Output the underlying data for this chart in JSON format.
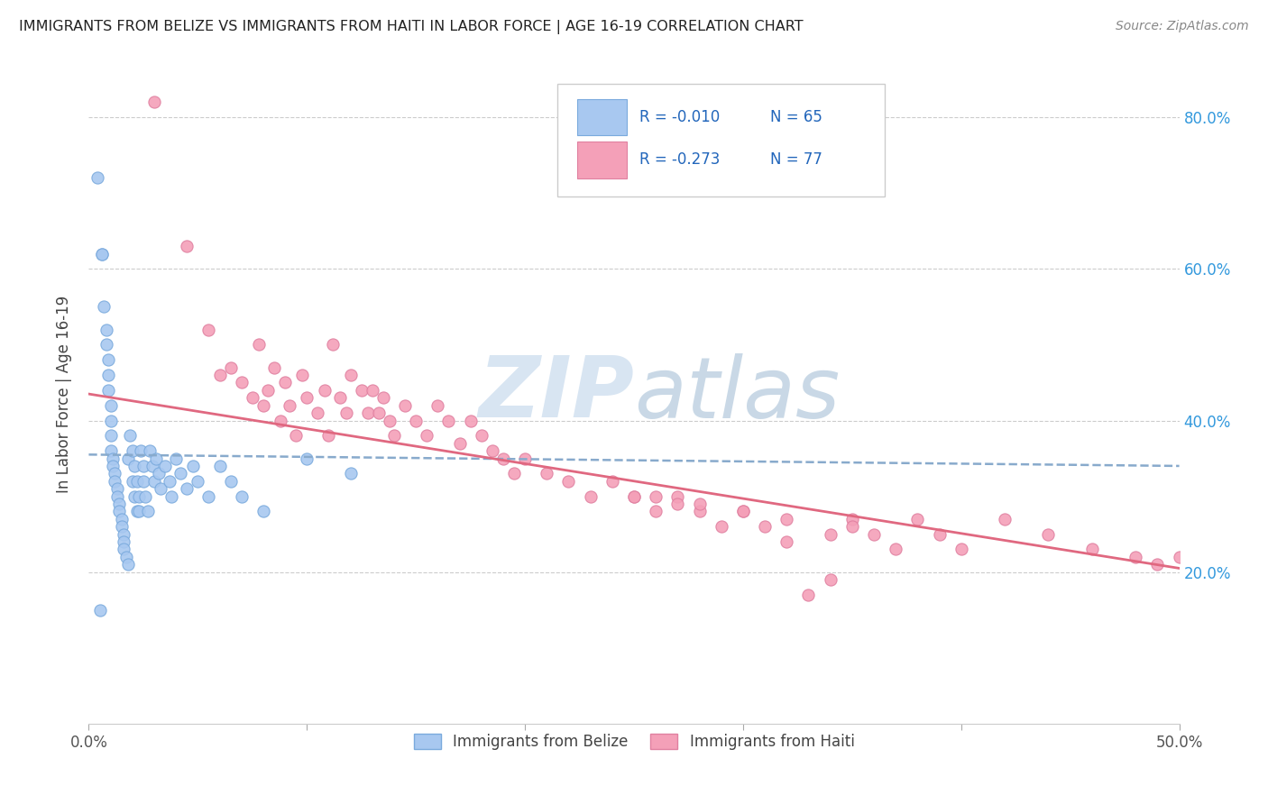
{
  "title": "IMMIGRANTS FROM BELIZE VS IMMIGRANTS FROM HAITI IN LABOR FORCE | AGE 16-19 CORRELATION CHART",
  "source": "Source: ZipAtlas.com",
  "ylabel": "In Labor Force | Age 16-19",
  "xmin": 0.0,
  "xmax": 0.5,
  "ymin": 0.0,
  "ymax": 0.87,
  "belize_color": "#a8c8f0",
  "haiti_color": "#f4a0b8",
  "belize_edge_color": "#7aaadd",
  "haiti_edge_color": "#e080a0",
  "belize_line_color": "#88aacc",
  "haiti_line_color": "#e06880",
  "legend_belize_label": "Immigrants from Belize",
  "legend_haiti_label": "Immigrants from Haiti",
  "R_belize": "-0.010",
  "N_belize": "65",
  "R_haiti": "-0.273",
  "N_haiti": "77",
  "belize_trend_intercept": 0.355,
  "belize_trend_slope": -0.03,
  "haiti_trend_intercept": 0.435,
  "haiti_trend_slope": -0.46,
  "belize_x": [
    0.004,
    0.006,
    0.006,
    0.007,
    0.008,
    0.008,
    0.009,
    0.009,
    0.009,
    0.01,
    0.01,
    0.01,
    0.01,
    0.011,
    0.011,
    0.012,
    0.012,
    0.013,
    0.013,
    0.014,
    0.014,
    0.015,
    0.015,
    0.016,
    0.016,
    0.016,
    0.017,
    0.018,
    0.018,
    0.019,
    0.02,
    0.02,
    0.021,
    0.021,
    0.022,
    0.022,
    0.023,
    0.023,
    0.024,
    0.025,
    0.025,
    0.026,
    0.027,
    0.028,
    0.029,
    0.03,
    0.031,
    0.032,
    0.033,
    0.035,
    0.037,
    0.038,
    0.04,
    0.042,
    0.045,
    0.048,
    0.05,
    0.055,
    0.06,
    0.065,
    0.07,
    0.08,
    0.1,
    0.12,
    0.005
  ],
  "belize_y": [
    0.72,
    0.62,
    0.62,
    0.55,
    0.52,
    0.5,
    0.48,
    0.46,
    0.44,
    0.42,
    0.4,
    0.38,
    0.36,
    0.35,
    0.34,
    0.33,
    0.32,
    0.31,
    0.3,
    0.29,
    0.28,
    0.27,
    0.26,
    0.25,
    0.24,
    0.23,
    0.22,
    0.21,
    0.35,
    0.38,
    0.32,
    0.36,
    0.34,
    0.3,
    0.28,
    0.32,
    0.3,
    0.28,
    0.36,
    0.34,
    0.32,
    0.3,
    0.28,
    0.36,
    0.34,
    0.32,
    0.35,
    0.33,
    0.31,
    0.34,
    0.32,
    0.3,
    0.35,
    0.33,
    0.31,
    0.34,
    0.32,
    0.3,
    0.34,
    0.32,
    0.3,
    0.28,
    0.35,
    0.33,
    0.15
  ],
  "haiti_x": [
    0.03,
    0.045,
    0.055,
    0.06,
    0.065,
    0.07,
    0.075,
    0.078,
    0.08,
    0.082,
    0.085,
    0.088,
    0.09,
    0.092,
    0.095,
    0.098,
    0.1,
    0.105,
    0.108,
    0.11,
    0.112,
    0.115,
    0.118,
    0.12,
    0.125,
    0.128,
    0.13,
    0.133,
    0.135,
    0.138,
    0.14,
    0.145,
    0.15,
    0.155,
    0.16,
    0.165,
    0.17,
    0.175,
    0.18,
    0.185,
    0.19,
    0.195,
    0.2,
    0.21,
    0.22,
    0.23,
    0.24,
    0.25,
    0.26,
    0.27,
    0.28,
    0.29,
    0.3,
    0.31,
    0.32,
    0.33,
    0.34,
    0.35,
    0.36,
    0.37,
    0.38,
    0.39,
    0.4,
    0.42,
    0.44,
    0.46,
    0.48,
    0.49,
    0.5,
    0.25,
    0.3,
    0.35,
    0.28,
    0.32,
    0.26,
    0.34,
    0.27
  ],
  "haiti_y": [
    0.82,
    0.63,
    0.52,
    0.46,
    0.47,
    0.45,
    0.43,
    0.5,
    0.42,
    0.44,
    0.47,
    0.4,
    0.45,
    0.42,
    0.38,
    0.46,
    0.43,
    0.41,
    0.44,
    0.38,
    0.5,
    0.43,
    0.41,
    0.46,
    0.44,
    0.41,
    0.44,
    0.41,
    0.43,
    0.4,
    0.38,
    0.42,
    0.4,
    0.38,
    0.42,
    0.4,
    0.37,
    0.4,
    0.38,
    0.36,
    0.35,
    0.33,
    0.35,
    0.33,
    0.32,
    0.3,
    0.32,
    0.3,
    0.28,
    0.3,
    0.28,
    0.26,
    0.28,
    0.26,
    0.24,
    0.17,
    0.19,
    0.27,
    0.25,
    0.23,
    0.27,
    0.25,
    0.23,
    0.27,
    0.25,
    0.23,
    0.22,
    0.21,
    0.22,
    0.3,
    0.28,
    0.26,
    0.29,
    0.27,
    0.3,
    0.25,
    0.29
  ]
}
